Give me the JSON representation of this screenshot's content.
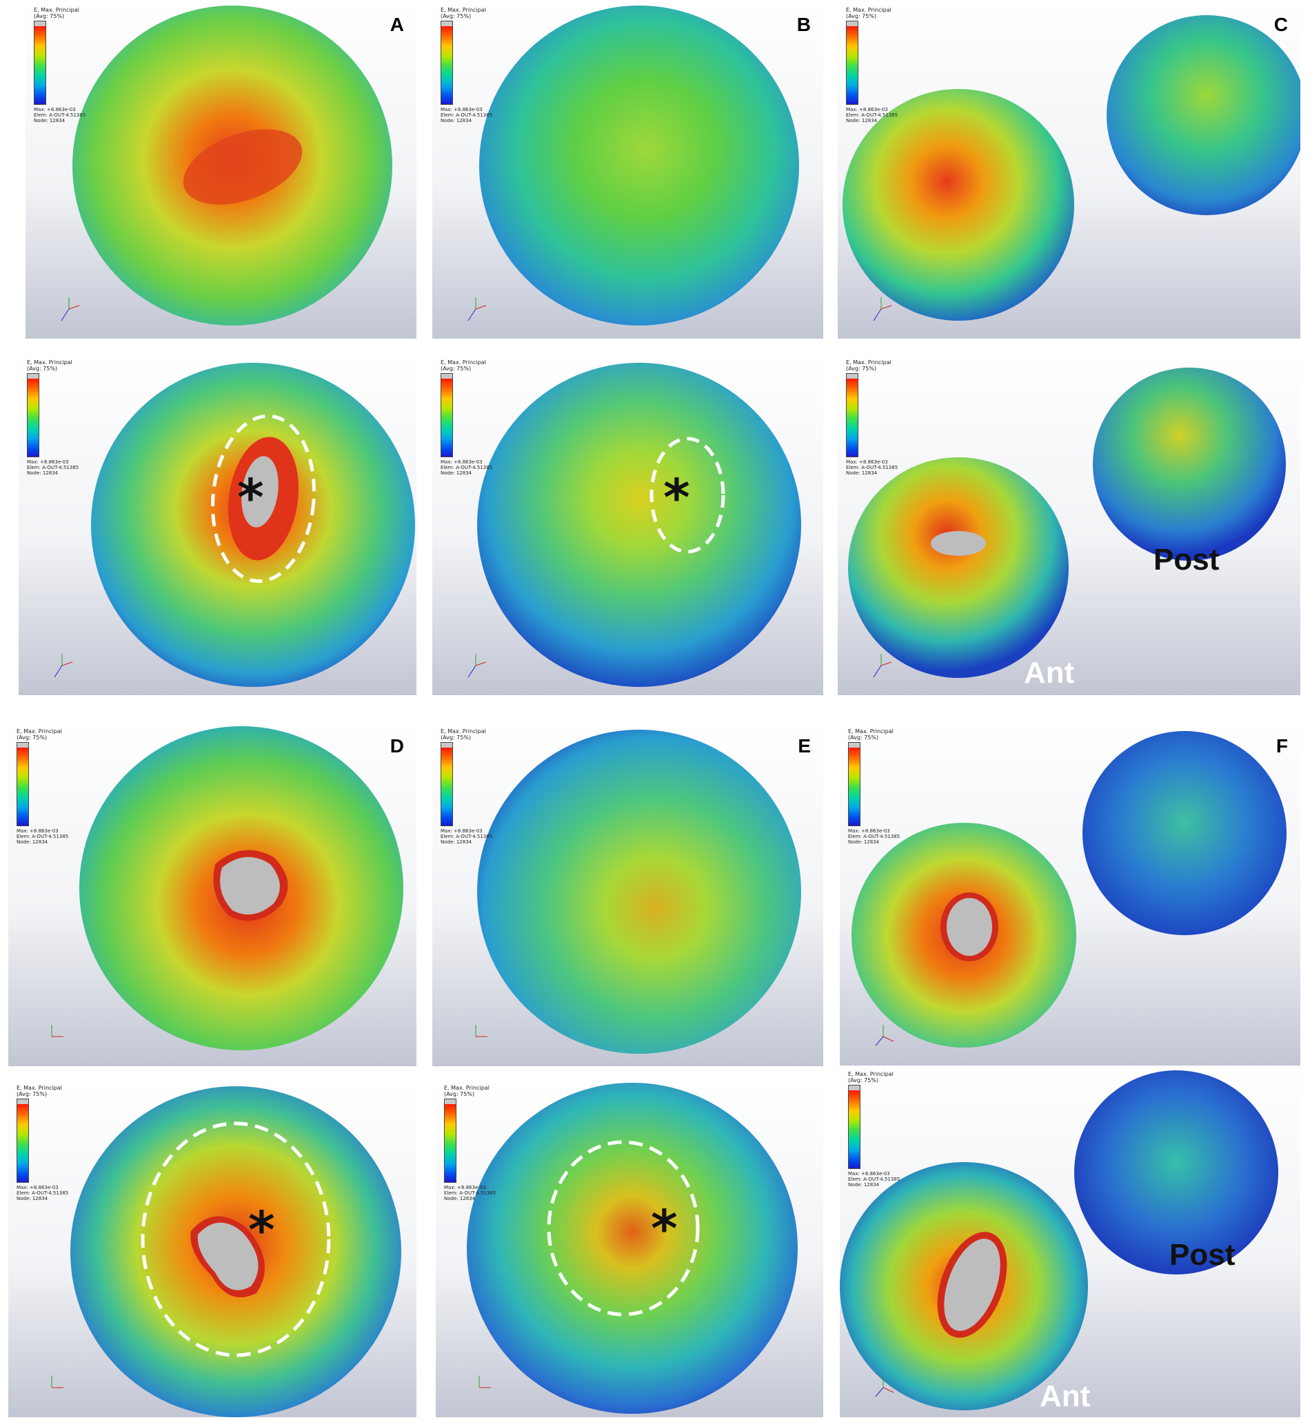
{
  "legend": {
    "title": "E, Max. Principal\n(Avg: 75%)",
    "footer": "Max: +8.863e-03\nElem: A-OUT-4.51385\nNode: 12834"
  },
  "panels": {
    "A": {
      "letter": "A"
    },
    "B": {
      "letter": "B"
    },
    "C": {
      "letter": "C"
    },
    "D": {
      "letter": "D"
    },
    "E": {
      "letter": "E"
    },
    "F": {
      "letter": "F"
    }
  },
  "labels": {
    "post": "Post",
    "ant": "Ant",
    "asterisk": "*"
  },
  "colors": {
    "high": "#e63b1a",
    "warm": "#f5a000",
    "mid": "#b6d932",
    "cool": "#33c78e",
    "cold": "#1d6ad6",
    "deep": "#1430b8",
    "overload": "#bdbdbd",
    "dashed_outline": "#ffffff"
  }
}
